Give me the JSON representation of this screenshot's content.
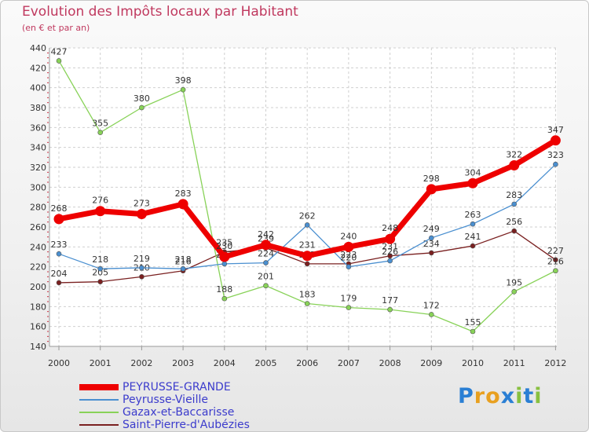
{
  "chart_data": {
    "type": "line",
    "title": "Evolution des Impôts locaux par Habitant",
    "subtitle": "(en € et par an)",
    "xlabel": "",
    "ylabel": "",
    "categories": [
      "2000",
      "2001",
      "2002",
      "2003",
      "2004",
      "2005",
      "2006",
      "2007",
      "2008",
      "2009",
      "2010",
      "2011",
      "2012"
    ],
    "ylim": [
      140,
      440
    ],
    "yticks": [
      140,
      160,
      180,
      200,
      220,
      240,
      260,
      280,
      300,
      320,
      340,
      360,
      380,
      400,
      420,
      440
    ],
    "grid": true,
    "legend_position": "bottom-left",
    "series": [
      {
        "name": "PEYRUSSE-GRANDE",
        "color": "#ee0000",
        "values": [
          268,
          276,
          273,
          283,
          230,
          242,
          231,
          240,
          248,
          298,
          304,
          322,
          347
        ]
      },
      {
        "name": "Peyrusse-Vieille",
        "color": "#4a8fd0",
        "values": [
          233,
          218,
          219,
          218,
          223,
          224,
          262,
          220,
          226,
          249,
          263,
          283,
          323
        ]
      },
      {
        "name": "Gazax-et-Baccarisse",
        "color": "#88d258",
        "values": [
          427,
          355,
          380,
          398,
          188,
          201,
          183,
          179,
          177,
          172,
          155,
          195,
          216
        ]
      },
      {
        "name": "Saint-Pierre-d'Aubézies",
        "color": "#7a2020",
        "values": [
          204,
          205,
          210,
          216,
          235,
          239,
          223,
          223,
          231,
          234,
          241,
          256,
          227
        ]
      }
    ]
  },
  "logo": {
    "text": "Proxiti",
    "letters": [
      "P",
      "r",
      "o",
      "x",
      "i",
      "t",
      "i"
    ],
    "colors": [
      "#2a7fd4",
      "#e8a020",
      "#e8a020",
      "#2a7fd4",
      "#88c040",
      "#2a7fd4",
      "#88c040"
    ]
  }
}
